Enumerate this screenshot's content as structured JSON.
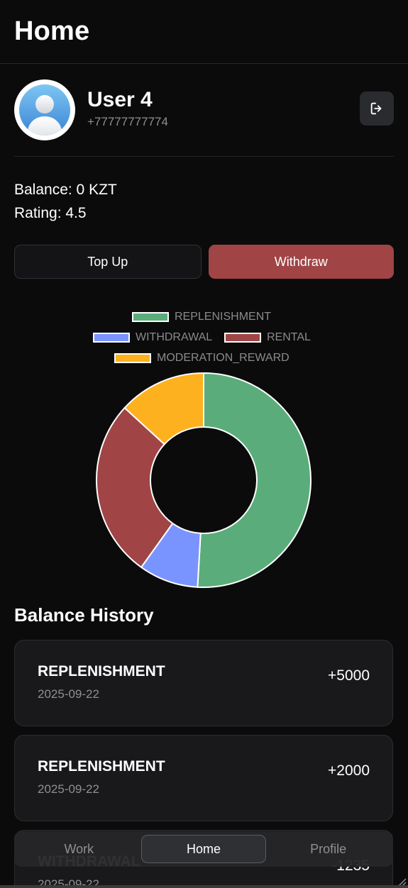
{
  "header": {
    "title": "Home"
  },
  "profile": {
    "name": "User 4",
    "phone": "+77777777774"
  },
  "stats": {
    "balance": "Balance: 0 KZT",
    "rating": "Rating: 4.5"
  },
  "actions": {
    "topup_label": "Top Up",
    "withdraw_label": "Withdraw"
  },
  "icons": {
    "avatar": "user-avatar-icon",
    "logout": "logout-icon"
  },
  "colors": {
    "background": "#0b0b0c",
    "withdraw_button": "#a04446",
    "card": "#19191b"
  },
  "chart_data": {
    "type": "doughnut",
    "legend_position": "top",
    "series": [
      {
        "name": "REPLENISHMENT",
        "value": 7000,
        "color": "#5aad7a"
      },
      {
        "name": "WITHDRAWAL",
        "value": 1235,
        "color": "#7a94ff"
      },
      {
        "name": "RENTAL",
        "value": 3700,
        "color": "#a04446"
      },
      {
        "name": "MODERATION_REWARD",
        "value": 1815,
        "color": "#fdb11f"
      }
    ]
  },
  "history": {
    "title": "Balance History",
    "items": [
      {
        "type": "REPLENISHMENT",
        "date": "2025-09-22",
        "amount": "+5000"
      },
      {
        "type": "REPLENISHMENT",
        "date": "2025-09-22",
        "amount": "+2000"
      },
      {
        "type": "WITHDRAWAL",
        "date": "2025-09-22",
        "amount": "-1235"
      }
    ]
  },
  "nav": {
    "tabs": [
      {
        "label": "Work",
        "active": false
      },
      {
        "label": "Home",
        "active": true
      },
      {
        "label": "Profile",
        "active": false
      }
    ]
  }
}
